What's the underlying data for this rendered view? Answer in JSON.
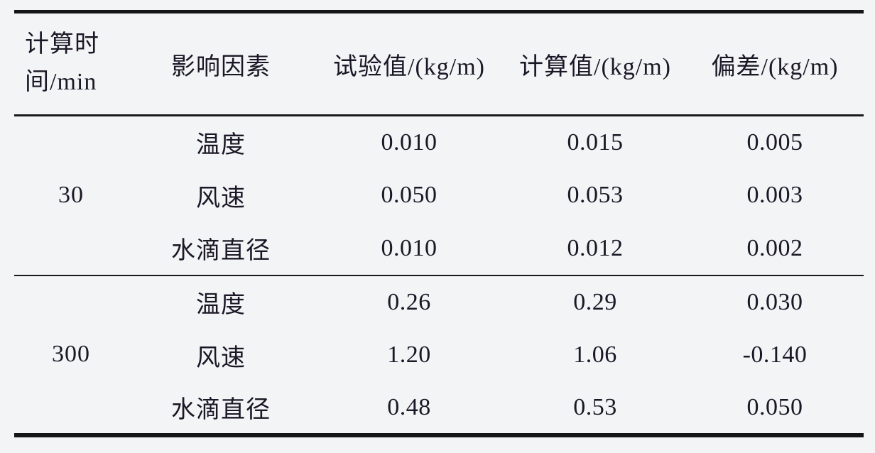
{
  "table": {
    "title_semantic": "影响因素试验值与计算值偏差表",
    "headers": {
      "time": "计算时间/min",
      "time_lines": [
        "计算时",
        "间/min"
      ],
      "factor": "影响因素",
      "test": "试验值/(kg/m)",
      "calc": "计算值/(kg/m)",
      "dev": "偏差/(kg/m)"
    },
    "groups": [
      {
        "time": "30",
        "rows": [
          {
            "factor": "温度",
            "test": "0.010",
            "calc": "0.015",
            "dev": "0.005"
          },
          {
            "factor": "风速",
            "test": "0.050",
            "calc": "0.053",
            "dev": "0.003"
          },
          {
            "factor": "水滴直径",
            "test": "0.010",
            "calc": "0.012",
            "dev": "0.002"
          }
        ]
      },
      {
        "time": "300",
        "rows": [
          {
            "factor": "温度",
            "test": "0.26",
            "calc": "0.29",
            "dev": "0.030"
          },
          {
            "factor": "风速",
            "test": "1.20",
            "calc": "1.06",
            "dev": "-0.140"
          },
          {
            "factor": "水滴直径",
            "test": "0.48",
            "calc": "0.53",
            "dev": "0.050"
          }
        ]
      }
    ],
    "colors": {
      "background": "#f3f4f6",
      "text": "#1b1726",
      "border": "#151515"
    }
  }
}
